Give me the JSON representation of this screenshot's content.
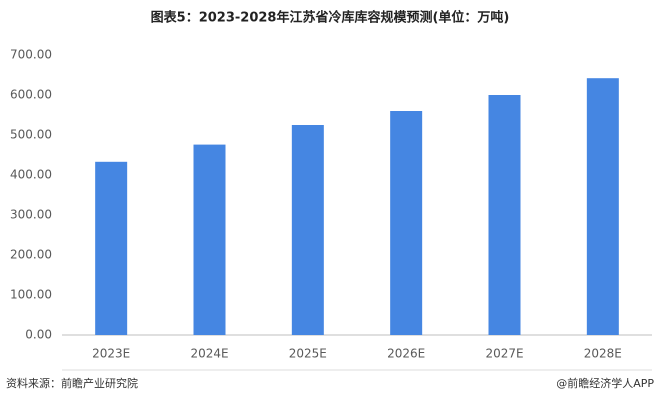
{
  "chart_data": {
    "type": "bar",
    "title": "图表5：2023-2028年江苏省冷库库容规模预测(单位：万吨)",
    "categories": [
      "2023E",
      "2024E",
      "2025E",
      "2026E",
      "2027E",
      "2028E"
    ],
    "values": [
      433,
      476,
      525,
      560,
      600,
      642
    ],
    "color": "#4586e2",
    "ylim": [
      0,
      700
    ],
    "yticks": [
      {
        "value": 0,
        "label": "0.00"
      },
      {
        "value": 100,
        "label": "100.00"
      },
      {
        "value": 200,
        "label": "200.00"
      },
      {
        "value": 300,
        "label": "300.00"
      },
      {
        "value": 400,
        "label": "400.00"
      },
      {
        "value": 500,
        "label": "500.00"
      },
      {
        "value": 600,
        "label": "600.00"
      },
      {
        "value": 700,
        "label": "700.00"
      }
    ],
    "grid": false,
    "source": "资料来源：前瞻产业研究院",
    "credit": "@前瞻经济学人APP"
  }
}
